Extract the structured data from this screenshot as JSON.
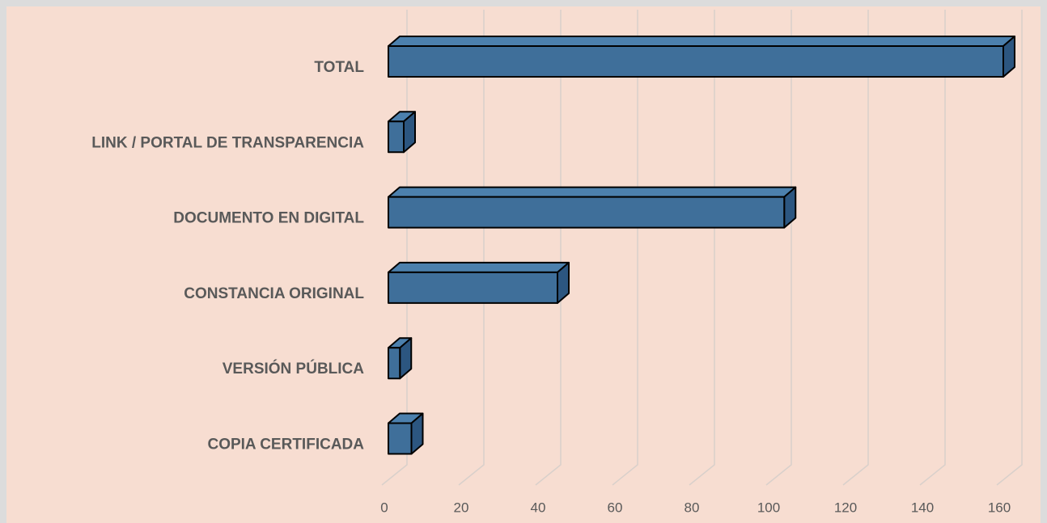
{
  "chart_data": {
    "type": "bar3d_horizontal",
    "categories": [
      "TOTAL",
      "LINK / PORTAL DE TRANSPARENCIA",
      "DOCUMENTO EN DIGITAL",
      "CONSTANCIA ORIGINAL",
      "VERSIÓN PÚBLICA",
      "COPIA CERTIFICADA"
    ],
    "values": [
      160,
      4,
      103,
      44,
      3,
      6
    ],
    "color": "#3f6f9a",
    "xlim": [
      0,
      160
    ],
    "xticks": [
      0,
      20,
      40,
      60,
      80,
      100,
      120,
      140,
      160
    ],
    "grid": true
  }
}
